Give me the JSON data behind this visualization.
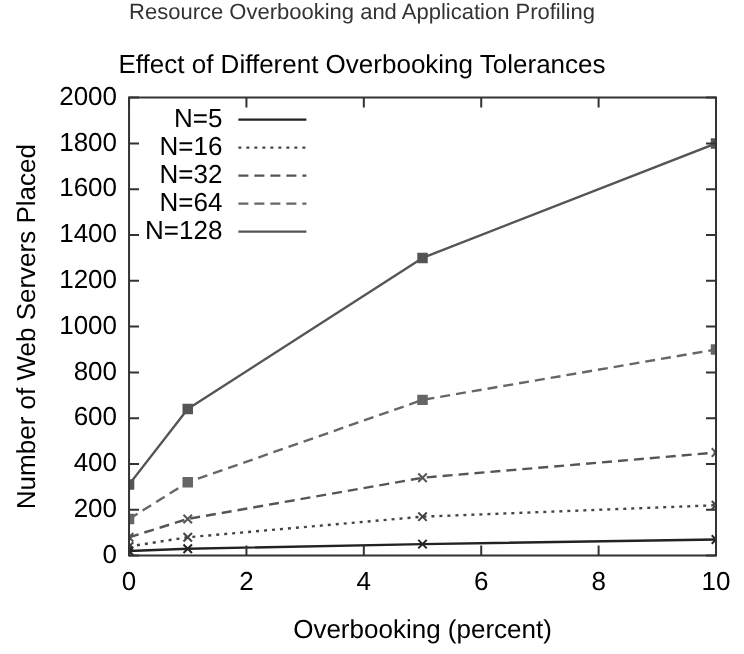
{
  "chart_data": {
    "type": "line",
    "title": "Resource Overbooking and Application Profiling",
    "subtitle": "Effect of Different Overbooking Tolerances",
    "xlabel": "Overbooking (percent)",
    "ylabel": "Number of Web Servers Placed",
    "x": [
      0,
      1,
      5,
      10
    ],
    "series": [
      {
        "name": "N=5",
        "color": "#222222",
        "line_style": "solid",
        "marker": "cross",
        "values": [
          20,
          30,
          50,
          70
        ]
      },
      {
        "name": "N=16",
        "color": "#444444",
        "line_style": "dotted",
        "marker": "cross",
        "values": [
          40,
          80,
          170,
          220
        ]
      },
      {
        "name": "N=32",
        "color": "#555555",
        "line_style": "dashed",
        "marker": "cross",
        "values": [
          80,
          160,
          340,
          450
        ]
      },
      {
        "name": "N=64",
        "color": "#666666",
        "line_style": "dashed",
        "marker": "square",
        "values": [
          160,
          320,
          680,
          900
        ]
      },
      {
        "name": "N=128",
        "color": "#555555",
        "line_style": "solid",
        "marker": "square",
        "values": [
          310,
          640,
          1300,
          1800
        ]
      }
    ],
    "xlim": [
      0,
      10
    ],
    "xticks": [
      0,
      2,
      4,
      6,
      8,
      10
    ],
    "ylim": [
      0,
      2000
    ],
    "yticks": [
      0,
      200,
      400,
      600,
      800,
      1000,
      1200,
      1400,
      1600,
      1800,
      2000
    ],
    "grid": false,
    "legend": "top left"
  }
}
